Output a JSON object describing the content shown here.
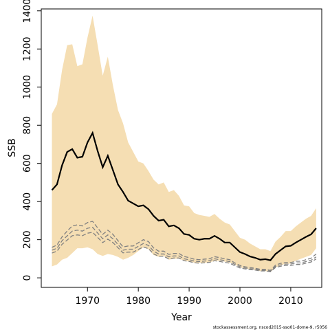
{
  "chart_data": {
    "type": "line",
    "x_label": "Year",
    "y_label": "SSB",
    "footnote": "stockassessment.org, nscod2015-sso01-dome-9, r5056",
    "x": [
      1963,
      1964,
      1965,
      1966,
      1967,
      1968,
      1969,
      1970,
      1971,
      1972,
      1973,
      1974,
      1975,
      1976,
      1977,
      1978,
      1979,
      1980,
      1981,
      1982,
      1983,
      1984,
      1985,
      1986,
      1987,
      1988,
      1989,
      1990,
      1991,
      1992,
      1993,
      1994,
      1995,
      1996,
      1997,
      1998,
      1999,
      2000,
      2001,
      2002,
      2003,
      2004,
      2005,
      2006,
      2007,
      2008,
      2009,
      2010,
      2011,
      2012,
      2013,
      2014,
      2015
    ],
    "band": {
      "color": "#f5deb3",
      "upper": [
        860,
        910,
        1090,
        1220,
        1225,
        1110,
        1120,
        1260,
        1375,
        1220,
        1060,
        1160,
        1010,
        880,
        810,
        710,
        660,
        610,
        600,
        560,
        515,
        490,
        500,
        450,
        460,
        430,
        380,
        375,
        340,
        330,
        325,
        320,
        335,
        310,
        290,
        280,
        245,
        210,
        200,
        180,
        165,
        150,
        150,
        140,
        190,
        215,
        245,
        245,
        270,
        290,
        310,
        325,
        365
      ],
      "lower": [
        60,
        70,
        95,
        105,
        130,
        155,
        155,
        160,
        150,
        125,
        115,
        125,
        120,
        110,
        95,
        105,
        120,
        140,
        160,
        150,
        120,
        110,
        115,
        95,
        100,
        100,
        90,
        85,
        80,
        80,
        80,
        80,
        90,
        90,
        85,
        80,
        70,
        55,
        50,
        45,
        42,
        35,
        35,
        30,
        55,
        65,
        75,
        75,
        90,
        100,
        110,
        120,
        155
      ]
    },
    "series": [
      {
        "color": "#000000",
        "dashed": false,
        "values": [
          460,
          490,
          590,
          660,
          675,
          630,
          635,
          710,
          760,
          665,
          580,
          640,
          565,
          490,
          450,
          405,
          390,
          375,
          380,
          360,
          325,
          300,
          305,
          270,
          275,
          260,
          230,
          225,
          205,
          200,
          205,
          205,
          220,
          205,
          185,
          185,
          160,
          135,
          125,
          112,
          105,
          95,
          98,
          92,
          125,
          145,
          165,
          168,
          185,
          200,
          215,
          228,
          260
        ]
      },
      {
        "color": "#808080",
        "dashed": true,
        "values": [
          160,
          172,
          215,
          245,
          272,
          278,
          272,
          290,
          296,
          262,
          228,
          250,
          228,
          195,
          162,
          167,
          167,
          184,
          200,
          190,
          157,
          140,
          140,
          123,
          128,
          128,
          112,
          106,
          98,
          95,
          98,
          100,
          111,
          106,
          100,
          95,
          78,
          65,
          58,
          54,
          50,
          45,
          45,
          39,
          67,
          76,
          80,
          80,
          87,
          87,
          95,
          103,
          125
        ]
      },
      {
        "color": "#808080",
        "dashed": true,
        "values": [
          145,
          155,
          195,
          220,
          245,
          250,
          245,
          260,
          265,
          235,
          205,
          225,
          205,
          175,
          145,
          150,
          150,
          165,
          180,
          170,
          140,
          125,
          125,
          110,
          115,
          115,
          100,
          95,
          88,
          85,
          88,
          90,
          100,
          95,
          90,
          85,
          70,
          58,
          52,
          48,
          45,
          40,
          40,
          35,
          60,
          68,
          72,
          72,
          78,
          78,
          85,
          92,
          110
        ]
      },
      {
        "color": "#808080",
        "dashed": true,
        "values": [
          130,
          140,
          176,
          198,
          221,
          225,
          221,
          234,
          239,
          212,
          185,
          203,
          185,
          158,
          131,
          135,
          135,
          149,
          162,
          153,
          126,
          113,
          113,
          99,
          104,
          104,
          90,
          86,
          79,
          77,
          79,
          81,
          90,
          86,
          81,
          77,
          63,
          52,
          47,
          43,
          41,
          36,
          36,
          32,
          54,
          61,
          65,
          65,
          70,
          70,
          77,
          83,
          99
        ]
      }
    ],
    "xlim": [
      1960.9,
      2016.1
    ],
    "ylim": [
      -50,
      1410
    ],
    "xticks": [
      1970,
      1980,
      1990,
      2000,
      2010
    ],
    "yticks": [
      0,
      200,
      400,
      600,
      800,
      1000,
      1200,
      1400
    ]
  }
}
